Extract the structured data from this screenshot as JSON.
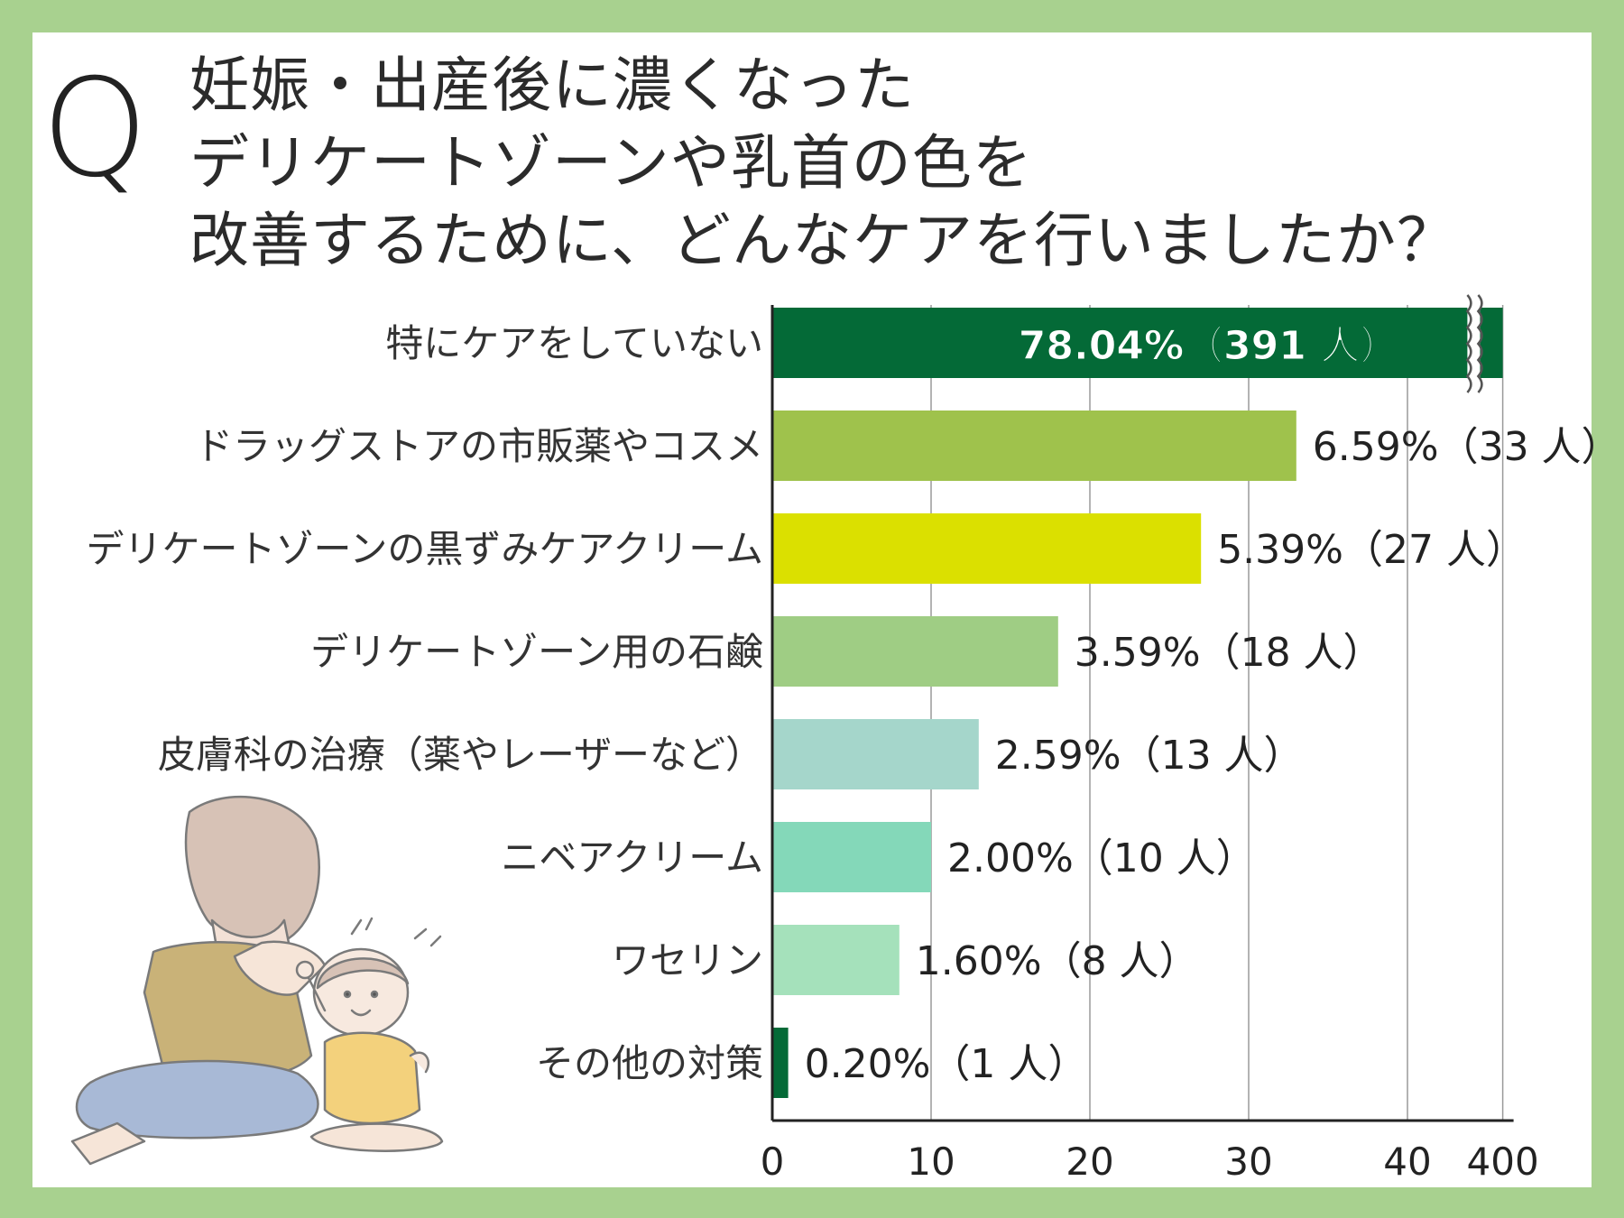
{
  "title": {
    "q": "Q",
    "lines": [
      "妊娠・出産後に濃くなった",
      "デリケートゾーンや乳首の色を",
      "改善するために、どんなケアを行いましたか？"
    ]
  },
  "colors": {
    "background": "#a8d18f",
    "panel": "#ffffff",
    "bar_dark_green": "#046a37",
    "bar_olive": "#9fc24c",
    "bar_yellow": "#dbe000",
    "bar_light_green": "#9fcd84",
    "bar_pale_teal": "#a5d6cb",
    "bar_mint": "#84d8b9",
    "bar_pale_mint": "#a5e1bb"
  },
  "chart_data": {
    "type": "bar",
    "orientation": "horizontal",
    "categories": [
      "特にケアをしていない",
      "ドラッグストアの市販薬やコスメ",
      "デリケートゾーンの黒ずみケアクリーム",
      "デリケートゾーン用の石鹸",
      "皮膚科の治療（薬やレーザーなど）",
      "ニベアクリーム",
      "ワセリン",
      "その他の対策"
    ],
    "values": [
      391,
      33,
      27,
      18,
      13,
      10,
      8,
      1
    ],
    "data_labels": [
      "78.04%（391 人）",
      "6.59%（33 人）",
      "5.39%（27 人）",
      "3.59%（18 人）",
      "2.59%（13 人）",
      "2.00%（10 人）",
      "1.60%（8 人）",
      "0.20%（1 人）"
    ],
    "bar_colors": [
      "#046a37",
      "#9fc24c",
      "#dbe000",
      "#9fcd84",
      "#a5d6cb",
      "#84d8b9",
      "#a5e1bb",
      "#046a37"
    ],
    "x_ticks": [
      "0",
      "10",
      "20",
      "30",
      "40",
      "400"
    ],
    "x_tick_values": [
      0,
      10,
      20,
      30,
      40,
      400
    ],
    "axis_break": "between 40 and 400",
    "grid": true,
    "legend": "none",
    "xlabel": "",
    "ylabel": ""
  }
}
